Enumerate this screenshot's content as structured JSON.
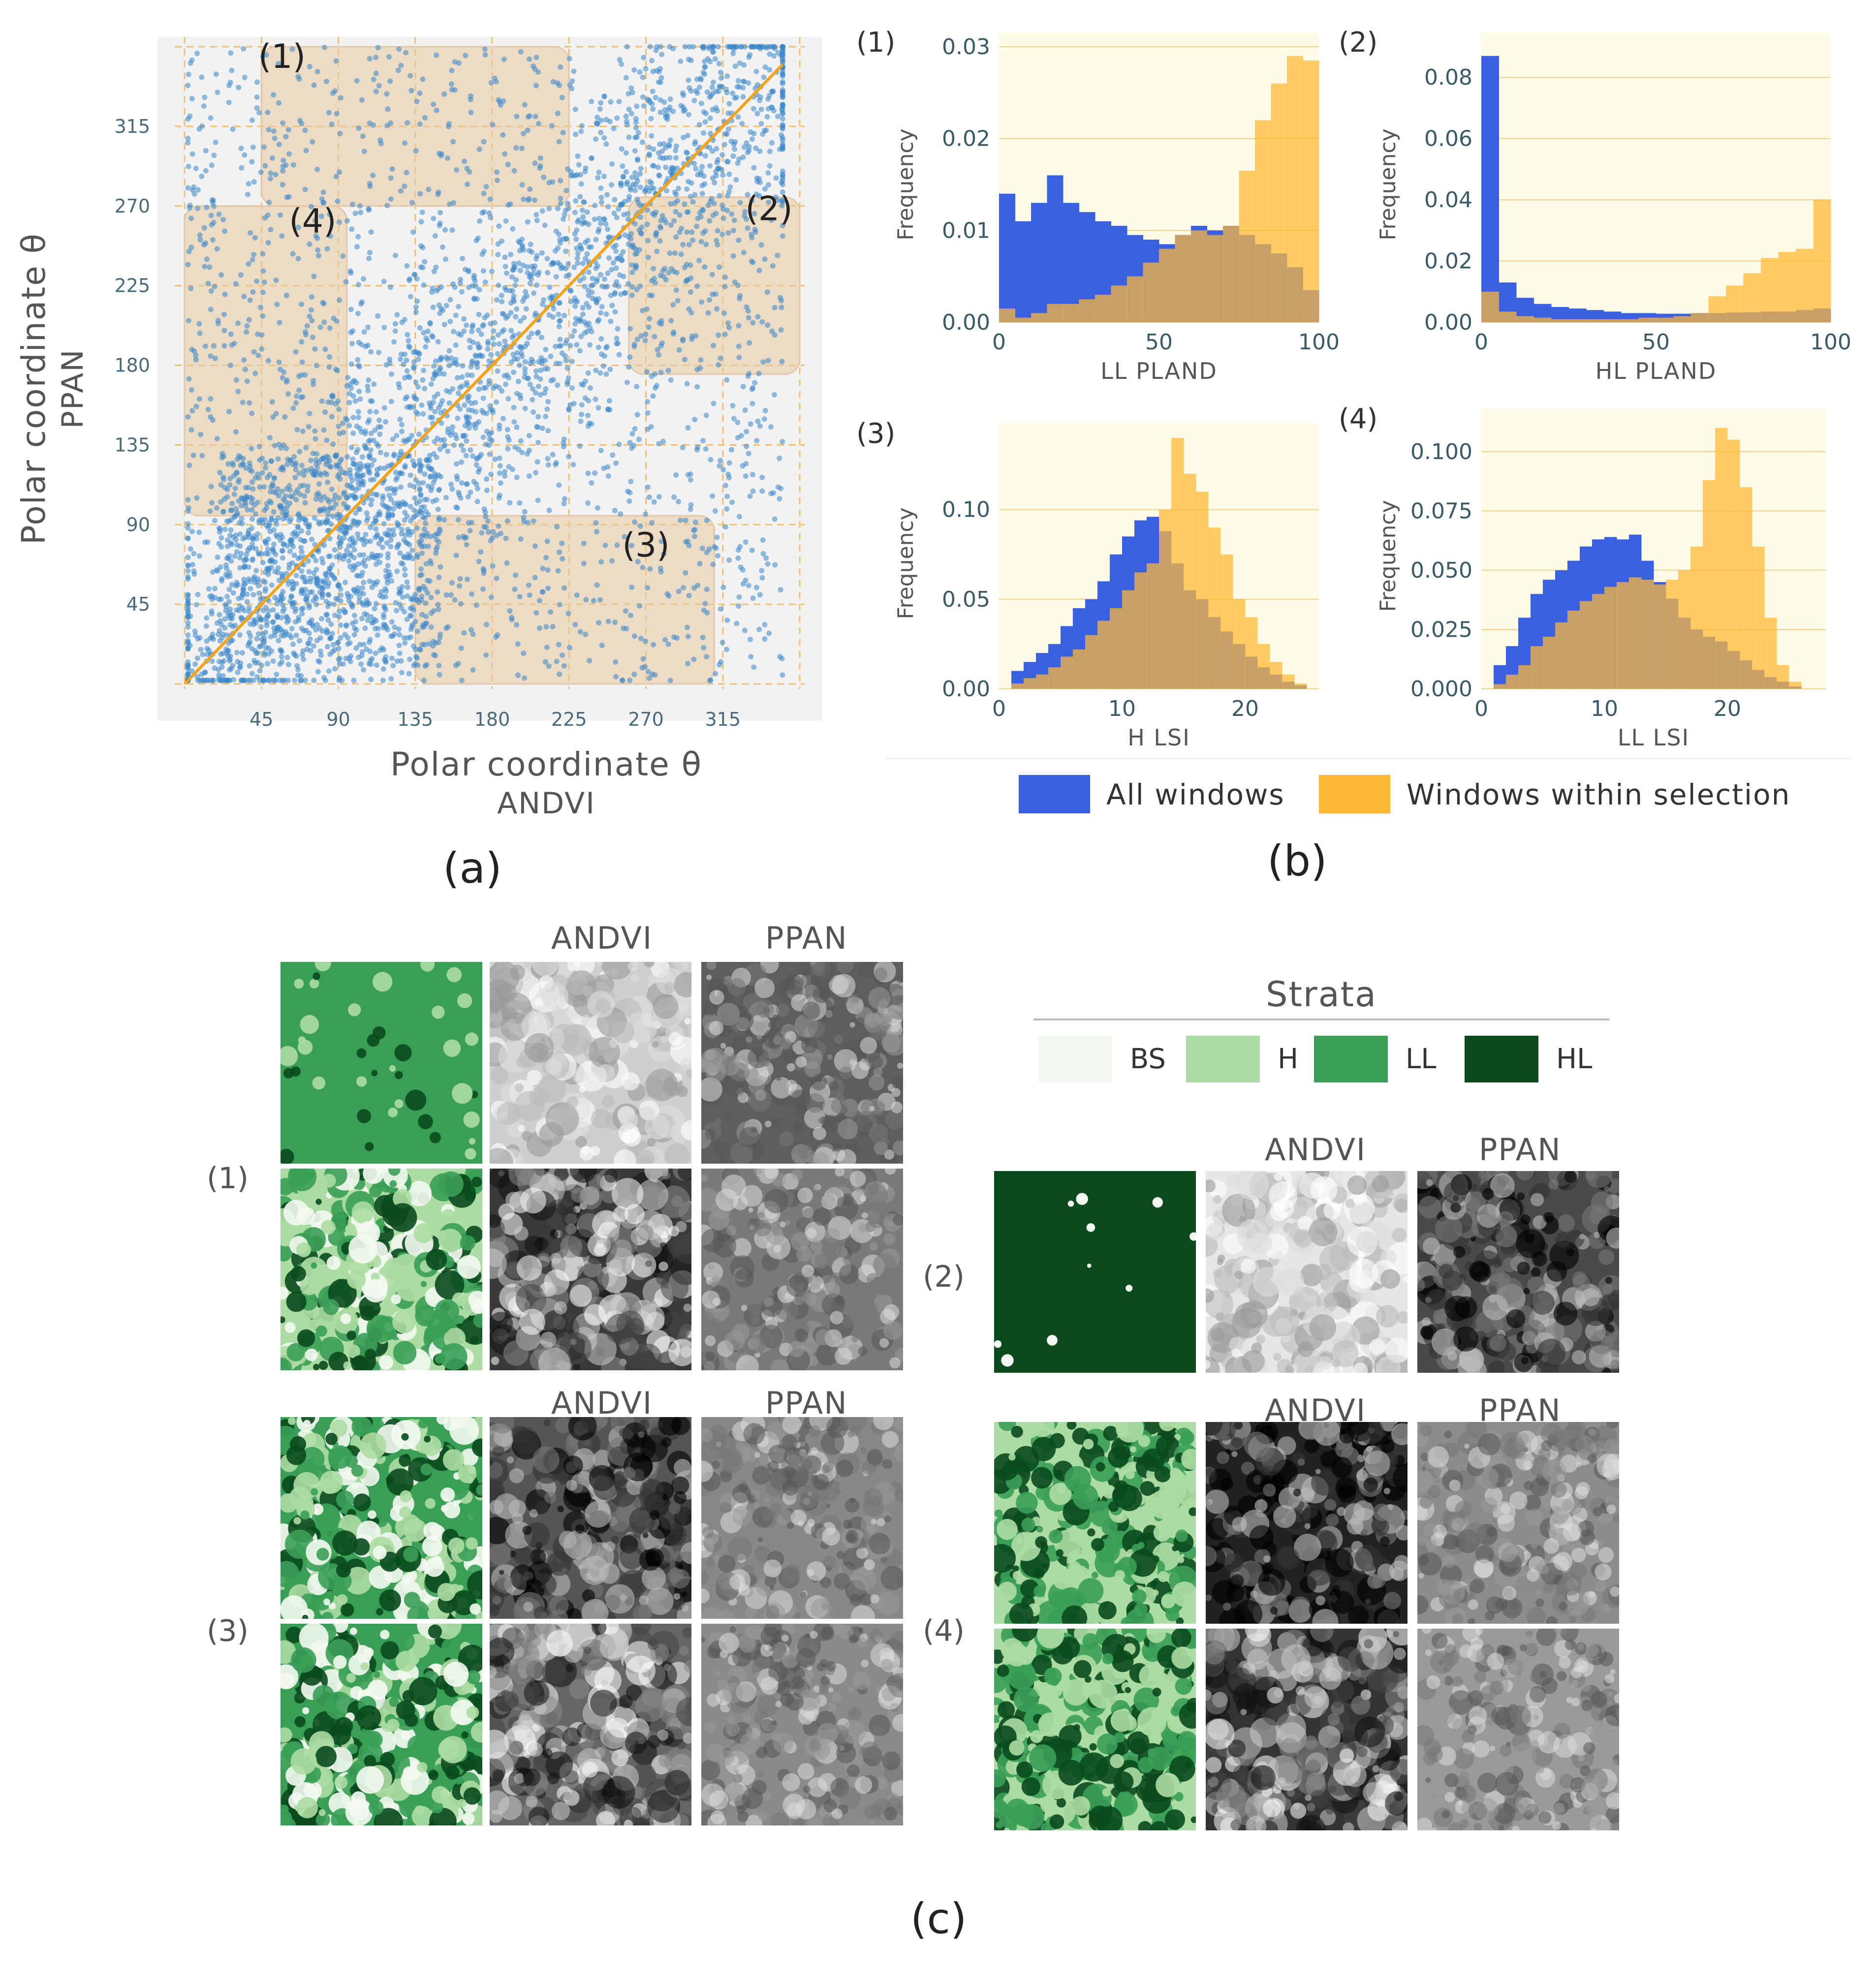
{
  "panels": {
    "a": "(a)",
    "b": "(b)",
    "c": "(c)"
  },
  "chart_data": [
    {
      "id": "scatter",
      "type": "scatter",
      "title": "",
      "xlabel_line1": "Polar coordinate  θ",
      "xlabel_line2": "ANDVI",
      "ylabel_line1": "Polar coordinate  θ",
      "ylabel_line2": "PPAN",
      "xlim": [
        0,
        360
      ],
      "ylim": [
        0,
        360
      ],
      "xticks": [
        45,
        90,
        135,
        180,
        225,
        270,
        315
      ],
      "yticks": [
        45,
        90,
        135,
        180,
        225,
        270,
        315
      ],
      "diagonal": [
        [
          0,
          0
        ],
        [
          350,
          350
        ]
      ],
      "selections": [
        {
          "label": "(1)",
          "x": [
            45,
            225
          ],
          "y": [
            270,
            360
          ]
        },
        {
          "label": "(2)",
          "x": [
            260,
            360
          ],
          "y": [
            175,
            275
          ]
        },
        {
          "label": "(3)",
          "x": [
            135,
            310
          ],
          "y": [
            0,
            95
          ]
        },
        {
          "label": "(4)",
          "x": [
            0,
            95
          ],
          "y": [
            95,
            270
          ]
        }
      ],
      "point_color": "#3a86c8",
      "line_color": "#f2a31b",
      "selection_color": "#e8c9a0"
    },
    {
      "id": "hist1",
      "type": "bar",
      "tag": "(1)",
      "xlabel": "LL PLAND",
      "ylabel": "Frequency",
      "xlim": [
        0,
        100
      ],
      "ylim": [
        0,
        0.03
      ],
      "xticks": [
        0,
        50,
        100
      ],
      "yticks": [
        0,
        0.01,
        0.02,
        0.03
      ],
      "ytick_labels": [
        "0.00",
        "0.01",
        "0.02",
        "0.03"
      ],
      "bin_start": 0,
      "bin_width": 5,
      "series": [
        {
          "name": "All windows",
          "values": [
            0.014,
            0.011,
            0.013,
            0.016,
            0.013,
            0.012,
            0.011,
            0.0105,
            0.0095,
            0.009,
            0.0085,
            0.0095,
            0.0105,
            0.01,
            0.0105,
            0.0095,
            0.0085,
            0.0075,
            0.006,
            0.0035
          ]
        },
        {
          "name": "Windows within selection",
          "values": [
            0.0015,
            0.0005,
            0.001,
            0.002,
            0.002,
            0.0025,
            0.003,
            0.004,
            0.005,
            0.0065,
            0.008,
            0.0095,
            0.01,
            0.0095,
            0.0105,
            0.0165,
            0.022,
            0.026,
            0.029,
            0.0285
          ]
        }
      ]
    },
    {
      "id": "hist2",
      "type": "bar",
      "tag": "(2)",
      "xlabel": "HL PLAND",
      "ylabel": "Frequency",
      "xlim": [
        0,
        100
      ],
      "ylim": [
        0,
        0.09
      ],
      "xticks": [
        0,
        50,
        100
      ],
      "yticks": [
        0,
        0.02,
        0.04,
        0.06,
        0.08
      ],
      "ytick_labels": [
        "0.00",
        "0.02",
        "0.04",
        "0.06",
        "0.08"
      ],
      "bin_start": 0,
      "bin_width": 5,
      "series": [
        {
          "name": "All windows",
          "values": [
            0.087,
            0.013,
            0.008,
            0.006,
            0.005,
            0.0045,
            0.004,
            0.0035,
            0.003,
            0.003,
            0.0028,
            0.0028,
            0.003,
            0.003,
            0.0032,
            0.0033,
            0.0035,
            0.0035,
            0.004,
            0.0045
          ]
        },
        {
          "name": "Windows within selection",
          "values": [
            0.01,
            0.0035,
            0.002,
            0.0015,
            0.001,
            0.001,
            0.001,
            0.001,
            0.001,
            0.0015,
            0.0015,
            0.002,
            0.003,
            0.0085,
            0.012,
            0.016,
            0.021,
            0.023,
            0.024,
            0.04
          ]
        }
      ]
    },
    {
      "id": "hist3",
      "type": "bar",
      "tag": "(3)",
      "xlabel": "H LSI",
      "ylabel": "Frequency",
      "xlim": [
        0,
        26
      ],
      "ylim": [
        0,
        0.14
      ],
      "xticks": [
        0,
        10,
        20
      ],
      "yticks": [
        0,
        0.05,
        0.1
      ],
      "ytick_labels": [
        "0.00",
        "0.05",
        "0.10"
      ],
      "bin_start": 1,
      "bin_width": 1,
      "series": [
        {
          "name": "All windows",
          "values": [
            0.01,
            0.015,
            0.02,
            0.025,
            0.035,
            0.045,
            0.05,
            0.06,
            0.075,
            0.085,
            0.094,
            0.096,
            0.088,
            0.07,
            0.055,
            0.05,
            0.04,
            0.032,
            0.025,
            0.018,
            0.012,
            0.008,
            0.004,
            0.002
          ]
        },
        {
          "name": "Windows within selection",
          "values": [
            0.003,
            0.006,
            0.008,
            0.012,
            0.018,
            0.022,
            0.03,
            0.038,
            0.045,
            0.055,
            0.065,
            0.07,
            0.1,
            0.14,
            0.12,
            0.11,
            0.09,
            0.075,
            0.05,
            0.04,
            0.025,
            0.015,
            0.008,
            0.003
          ]
        }
      ]
    },
    {
      "id": "hist4",
      "type": "bar",
      "tag": "(4)",
      "xlabel": "LL LSI",
      "ylabel": "Frequency",
      "xlim": [
        0,
        28
      ],
      "ylim": [
        0,
        0.112
      ],
      "xticks": [
        0,
        10,
        20
      ],
      "yticks": [
        0,
        0.025,
        0.05,
        0.075,
        0.1
      ],
      "ytick_labels": [
        "0.000",
        "0.025",
        "0.050",
        "0.075",
        "0.100"
      ],
      "bin_start": 1,
      "bin_width": 1,
      "series": [
        {
          "name": "All windows",
          "values": [
            0.01,
            0.018,
            0.03,
            0.04,
            0.046,
            0.05,
            0.054,
            0.06,
            0.063,
            0.064,
            0.063,
            0.065,
            0.054,
            0.045,
            0.038,
            0.03,
            0.025,
            0.022,
            0.02,
            0.016,
            0.012,
            0.008,
            0.005,
            0.003,
            0.001
          ]
        },
        {
          "name": "Windows within selection",
          "values": [
            0.002,
            0.006,
            0.01,
            0.018,
            0.022,
            0.028,
            0.033,
            0.037,
            0.04,
            0.043,
            0.045,
            0.047,
            0.046,
            0.044,
            0.046,
            0.05,
            0.06,
            0.088,
            0.11,
            0.105,
            0.085,
            0.06,
            0.03,
            0.01,
            0.003
          ]
        }
      ]
    }
  ],
  "legend": {
    "items": [
      {
        "label": "All windows",
        "color": "#3a5fe0"
      },
      {
        "label": "Windows within selection",
        "color": "#ffb833"
      }
    ]
  },
  "grid_c": {
    "andvi": "ANDVI",
    "ppan": "PPAN",
    "groups": [
      {
        "tag": "(1)"
      },
      {
        "tag": "(2)"
      },
      {
        "tag": "(3)"
      },
      {
        "tag": "(4)"
      }
    ]
  },
  "strata": {
    "title": "Strata",
    "items": [
      {
        "label": "BS",
        "color": "#f3f9f1"
      },
      {
        "label": "H",
        "color": "#acdca3"
      },
      {
        "label": "LL",
        "color": "#3a9e57"
      },
      {
        "label": "HL",
        "color": "#0a4a1d"
      }
    ]
  }
}
